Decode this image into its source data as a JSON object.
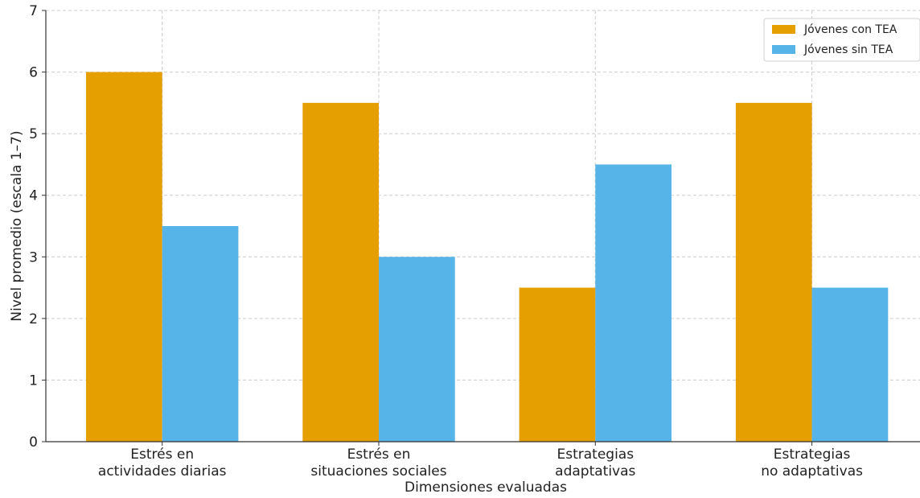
{
  "chart_data": {
    "type": "bar",
    "title": "",
    "xlabel": "Dimensiones evaluadas",
    "ylabel": "Nivel promedio (escala 1–7)",
    "categories": [
      [
        "Estrés en",
        "actividades diarias"
      ],
      [
        "Estrés en",
        "situaciones sociales"
      ],
      [
        "Estrategias",
        "adaptativas"
      ],
      [
        "Estrategias",
        "no adaptativas"
      ]
    ],
    "series": [
      {
        "name": "Jóvenes con TEA",
        "color": "#E69F00",
        "values": [
          6,
          5.5,
          2.5,
          5.5
        ]
      },
      {
        "name": "Jóvenes sin TEA",
        "color": "#56B4E9",
        "values": [
          3.5,
          3,
          4.5,
          2.5
        ]
      }
    ],
    "ylim": [
      0,
      7
    ],
    "yticks": [
      0,
      1,
      2,
      3,
      4,
      5,
      6,
      7
    ],
    "grid": true,
    "legend_position": "top-right"
  }
}
